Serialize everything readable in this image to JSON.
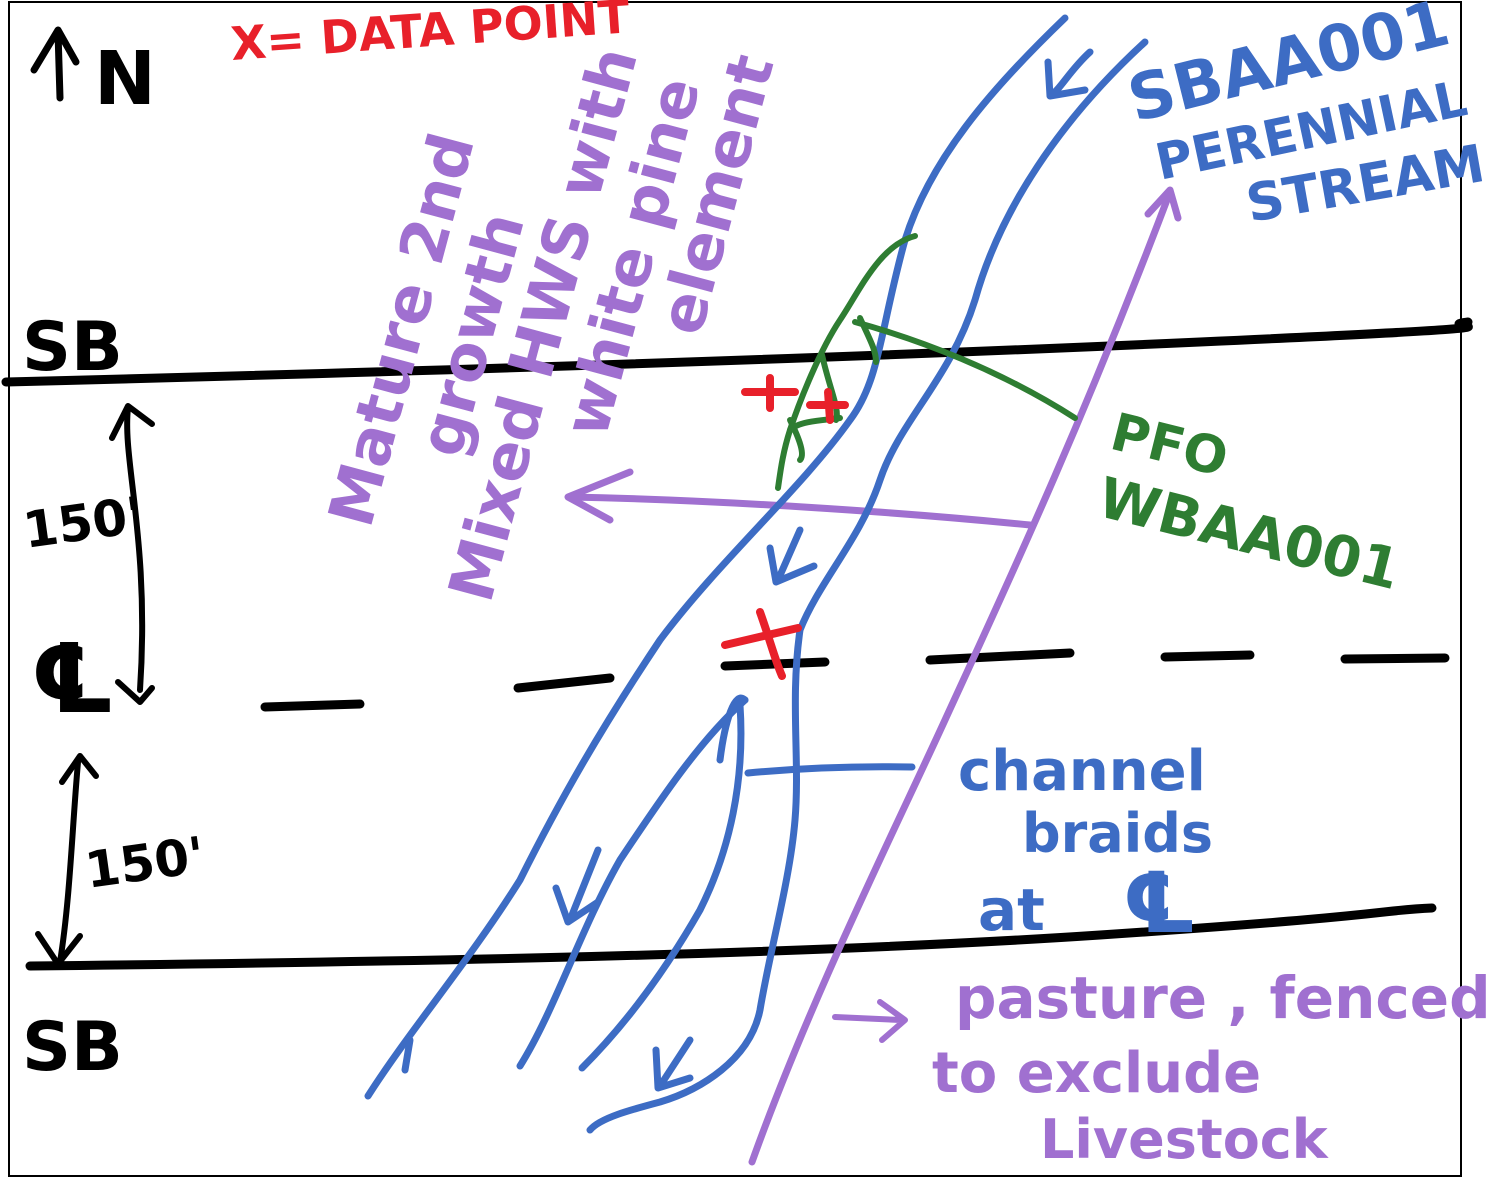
{
  "north_label": "N",
  "legend": "X= DATA POINT",
  "forest_label": [
    "Mature 2nd",
    "growth",
    "Mixed HWS with",
    "white pine",
    "element"
  ],
  "stream_label": [
    "SBAA001",
    "PERENNIAL",
    "STREAM"
  ],
  "wetland_label": [
    "PFO",
    "WBAA001"
  ],
  "sb_top": "SB",
  "sb_bottom": "SB",
  "dist_upper": "150'",
  "dist_lower": "150'",
  "centerline_symbol": "℄",
  "braids_label": [
    "channel",
    "braids",
    "at"
  ],
  "braids_symbol": "℄",
  "pasture_label": [
    "pasture , fenced",
    "to exclude",
    "Livestock"
  ],
  "colors": {
    "black": "#000000",
    "red": "#e8202a",
    "blue": "#3d6cc4",
    "purple": "#a070d0",
    "green": "#2e7d32"
  }
}
